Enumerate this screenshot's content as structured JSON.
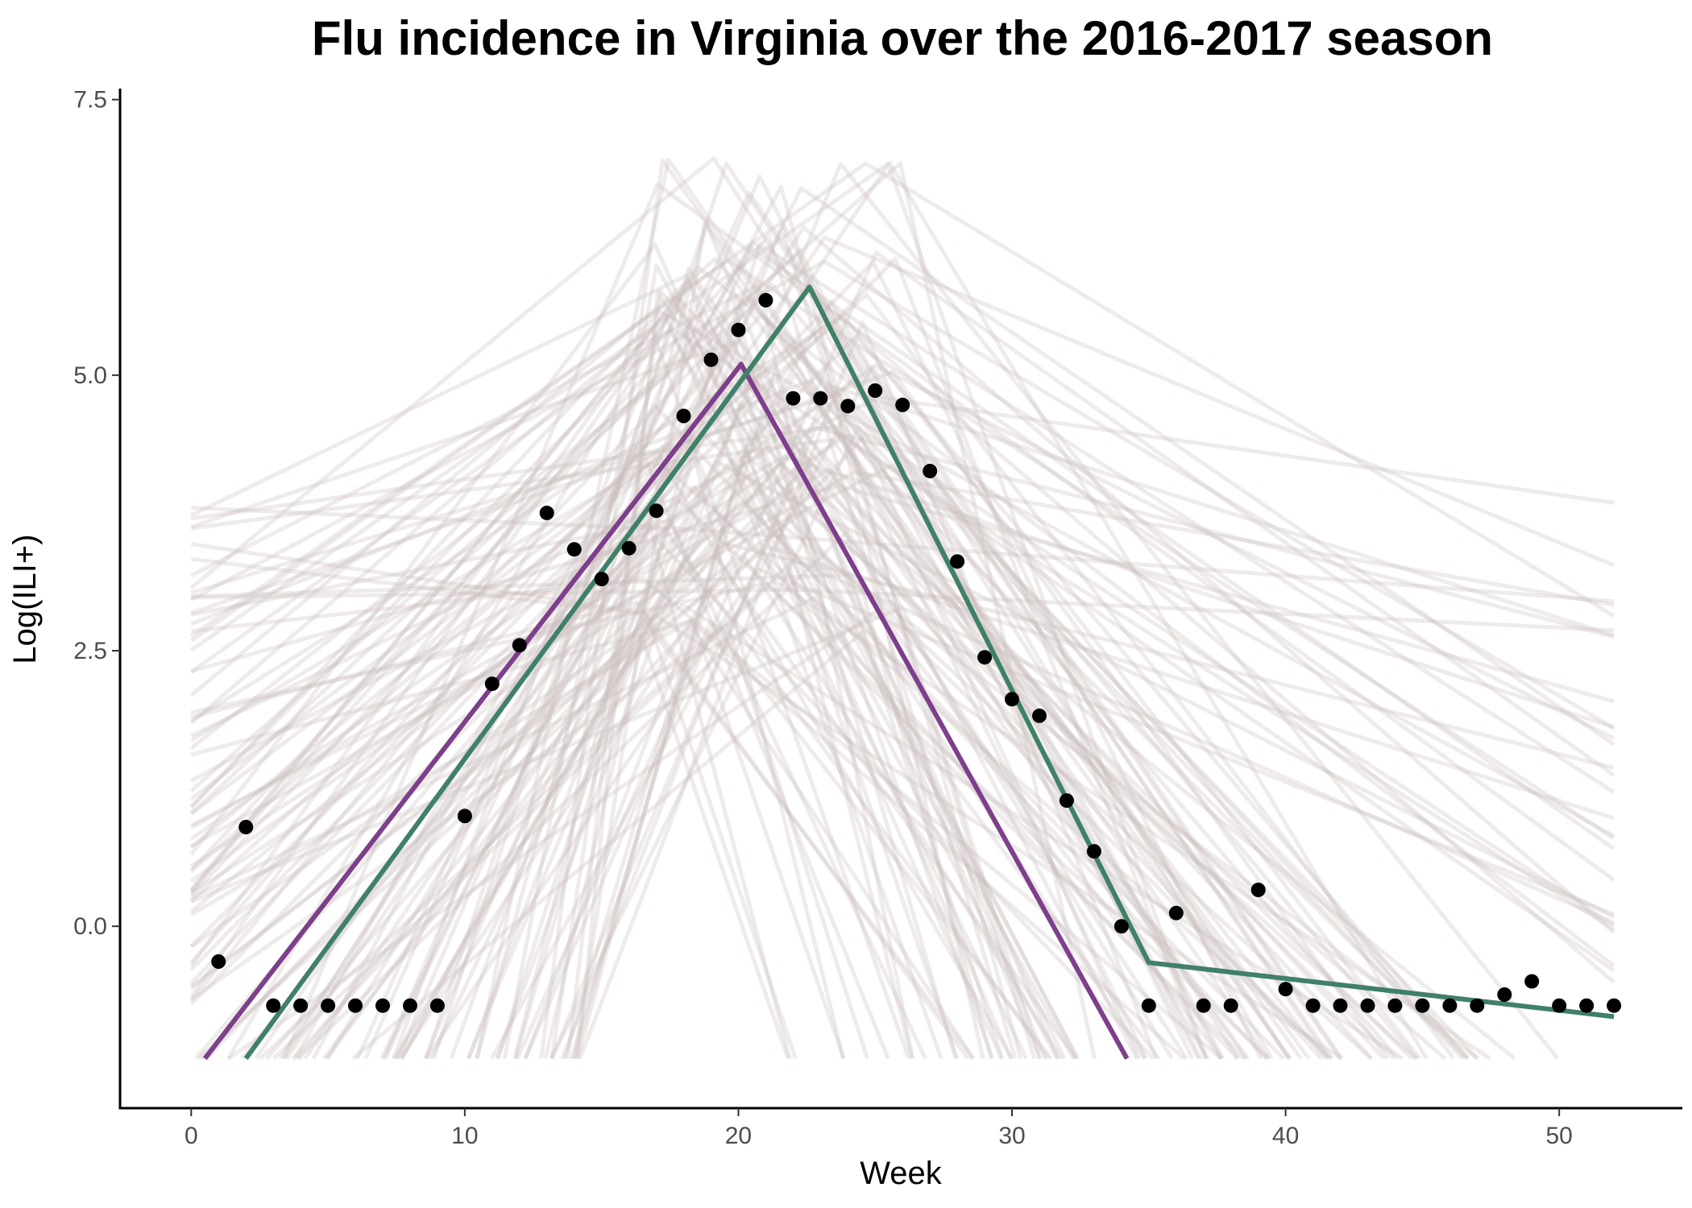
{
  "chart_data": {
    "type": "line",
    "title": "Flu incidence in Virginia over the 2016-2017 season",
    "xlabel": "Week",
    "ylabel": "Log(ILI+)",
    "xlim": [
      -2.6,
      54.5
    ],
    "ylim": [
      -1.65,
      7.6
    ],
    "x_ticks": [
      0,
      10,
      20,
      30,
      40,
      50
    ],
    "x_tick_labels": [
      "0",
      "10",
      "20",
      "30",
      "40",
      "50"
    ],
    "y_ticks": [
      0,
      2.5,
      5,
      7.5
    ],
    "y_tick_labels": [
      "0.0",
      "2.5",
      "5.0",
      "7.5"
    ],
    "grid": false,
    "legend": "none",
    "observed": {
      "color": "#000000",
      "x": [
        1,
        2,
        3,
        4,
        5,
        6,
        7,
        8,
        9,
        10,
        11,
        12,
        13,
        14,
        15,
        16,
        17,
        18,
        19,
        20,
        21,
        22,
        23,
        24,
        25,
        26,
        27,
        28,
        29,
        30,
        31,
        32,
        33,
        34,
        35,
        36,
        37,
        38,
        39,
        40,
        41,
        42,
        43,
        44,
        45,
        46,
        47,
        48,
        49,
        50,
        51,
        52
      ],
      "y": [
        -0.32,
        0.9,
        -0.72,
        -0.72,
        -0.72,
        -0.72,
        -0.72,
        -0.72,
        -0.72,
        1.0,
        2.2,
        2.55,
        3.75,
        3.42,
        3.15,
        3.43,
        3.77,
        4.63,
        5.14,
        5.41,
        5.68,
        4.79,
        4.79,
        4.72,
        4.86,
        4.73,
        4.13,
        3.31,
        2.44,
        2.06,
        1.91,
        1.14,
        0.68,
        0.0,
        -0.72,
        0.12,
        -0.72,
        -0.72,
        0.33,
        -0.57,
        -0.72,
        -0.72,
        -0.72,
        -0.72,
        -0.72,
        -0.72,
        -0.72,
        -0.62,
        -0.5,
        -0.72,
        -0.72,
        -0.72
      ]
    },
    "fits": [
      {
        "color": "#7d3f8c",
        "points": [
          [
            0.5,
            -1.2
          ],
          [
            20.1,
            5.1
          ],
          [
            34.2,
            -1.2
          ]
        ]
      },
      {
        "color": "#3f8068",
        "points": [
          [
            2.0,
            -1.2
          ],
          [
            22.6,
            5.8
          ],
          [
            35.0,
            -0.33
          ],
          [
            52.0,
            -0.82
          ]
        ]
      }
    ],
    "ensemble": {
      "color": "#c9bcbc",
      "floor": -1.2,
      "trajectory_count": 140
    }
  }
}
